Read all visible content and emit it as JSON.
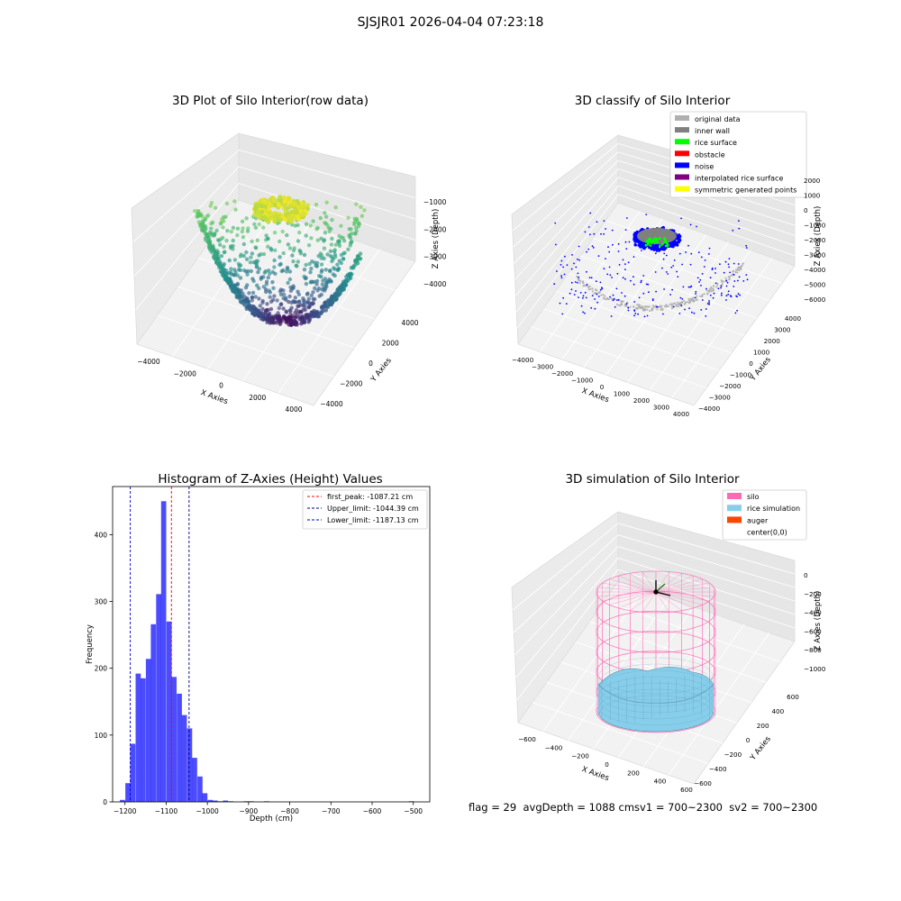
{
  "suptitle": "SJSJR01 2026-04-04 07:23:18",
  "footer": {
    "flag": "flag = 29",
    "avg": "avgDepth = 1088 cmsv1 = 700~2300",
    "sv2": "sv2 = 700~2300"
  },
  "colors": {
    "hist_bar": "#0000ff",
    "first_peak": "#ff0000",
    "upper_limit": "#000080",
    "lower_limit": "#0000cd",
    "silo": "#ff69b4",
    "rice": "#87ceeb",
    "auger": "#ff4500",
    "original": "#b0b0b0",
    "inner_wall": "#808080",
    "rice_surface": "#00ff00",
    "obstacle": "#ff0000",
    "noise": "#0000ff",
    "interp": "#800080",
    "symmetric": "#ffff00"
  },
  "chart_data": [
    {
      "type": "scatter3d",
      "title": "3D Plot of Silo Interior(row data)",
      "xlabel": "X Axies",
      "ylabel": "Y Axies",
      "zlabel": "Z Axies (Depth)",
      "xticks": [
        "−4000",
        "−2000",
        "0",
        "2000",
        "4000"
      ],
      "yticks": [
        "−4000",
        "−2000",
        "0",
        "2000",
        "4000"
      ],
      "zticks": [
        "−1000",
        "−2000",
        "−3000",
        "−4000"
      ],
      "xlim": [
        -4500,
        4500
      ],
      "ylim": [
        -4500,
        4500
      ],
      "zlim": [
        -4600,
        -500
      ],
      "colormap": "viridis",
      "grid": true
    },
    {
      "type": "scatter3d",
      "title": "3D classify of Silo Interior",
      "xlabel": "X Axies",
      "ylabel": "Y Axies",
      "zlabel": "Z Axies (Depth)",
      "xticks": [
        "−4000",
        "−3000",
        "−2000",
        "−1000",
        "0",
        "1000",
        "2000",
        "3000",
        "4000"
      ],
      "yticks": [
        "−4000",
        "−3000",
        "−2000",
        "−1000",
        "0",
        "1000",
        "2000",
        "3000",
        "4000"
      ],
      "zticks": [
        "2000",
        "1000",
        "0",
        "−1000",
        "−2000",
        "−3000",
        "−4000",
        "−5000",
        "−6000"
      ],
      "legend": {
        "position": "upper right",
        "entries": [
          {
            "label": "original data",
            "color": "#b0b0b0"
          },
          {
            "label": "inner wall",
            "color": "#808080"
          },
          {
            "label": "rice surface",
            "color": "#00ff00"
          },
          {
            "label": "obstacle",
            "color": "#ff0000"
          },
          {
            "label": "noise",
            "color": "#0000ff"
          },
          {
            "label": "interpolated rice surface",
            "color": "#800080"
          },
          {
            "label": "symmetric generated points",
            "color": "#ffff00"
          }
        ]
      },
      "grid": true
    },
    {
      "type": "bar",
      "title": "Histogram of Z-Axies (Height) Values",
      "xlabel": "Depth (cm)",
      "ylabel": "Frequency",
      "xlim": [
        -1230,
        -460
      ],
      "ylim": [
        0,
        472
      ],
      "xticks": [
        -1200,
        -1100,
        -1000,
        -900,
        -800,
        -700,
        -600,
        -500
      ],
      "yticks": [
        0,
        100,
        200,
        300,
        400
      ],
      "bin_width": 12.5,
      "bins": [
        {
          "x": -1206,
          "v": 3
        },
        {
          "x": -1193,
          "v": 28
        },
        {
          "x": -1181,
          "v": 87
        },
        {
          "x": -1168,
          "v": 192
        },
        {
          "x": -1156,
          "v": 185
        },
        {
          "x": -1143,
          "v": 214
        },
        {
          "x": -1131,
          "v": 266
        },
        {
          "x": -1118,
          "v": 311
        },
        {
          "x": -1106,
          "v": 450
        },
        {
          "x": -1093,
          "v": 270
        },
        {
          "x": -1081,
          "v": 187
        },
        {
          "x": -1068,
          "v": 162
        },
        {
          "x": -1056,
          "v": 130
        },
        {
          "x": -1043,
          "v": 110
        },
        {
          "x": -1031,
          "v": 66
        },
        {
          "x": -1018,
          "v": 38
        },
        {
          "x": -1006,
          "v": 13
        },
        {
          "x": -993,
          "v": 3
        },
        {
          "x": -981,
          "v": 2
        },
        {
          "x": -968,
          "v": 1
        },
        {
          "x": -956,
          "v": 2
        },
        {
          "x": -943,
          "v": 1
        },
        {
          "x": -906,
          "v": 1
        },
        {
          "x": -893,
          "v": 1
        },
        {
          "x": -856,
          "v": 1
        },
        {
          "x": -505,
          "v": 1
        }
      ],
      "vlines": [
        {
          "x": -1087.21,
          "label": "first_peak: -1087.21 cm",
          "color": "#ff0000"
        },
        {
          "x": -1044.39,
          "label": "Upper_limit: -1044.39 cm",
          "color": "#000080"
        },
        {
          "x": -1187.13,
          "label": "Lower_limit: -1187.13 cm",
          "color": "#0000cd"
        }
      ],
      "legend": "upper right"
    },
    {
      "type": "surface3d",
      "title": "3D simulation of Silo Interior",
      "xlabel": "X Axies",
      "ylabel": "Y Axies",
      "zlabel": "Z Axies (Depth)",
      "xticks": [
        "−600",
        "−400",
        "−200",
        "0",
        "200",
        "400",
        "600"
      ],
      "yticks": [
        "−600",
        "−400",
        "−200",
        "0",
        "200",
        "400",
        "600"
      ],
      "zticks": [
        "0",
        "−200",
        "−400",
        "−600",
        "−800",
        "−1000"
      ],
      "legend": {
        "position": "upper right",
        "entries": [
          {
            "label": "silo",
            "color": "#ff69b4"
          },
          {
            "label": "rice simulation",
            "color": "#87ceeb"
          },
          {
            "label": "auger",
            "color": "#ff4500"
          },
          {
            "label": "center(0,0)",
            "color": "#000000"
          }
        ]
      },
      "grid": true
    }
  ]
}
